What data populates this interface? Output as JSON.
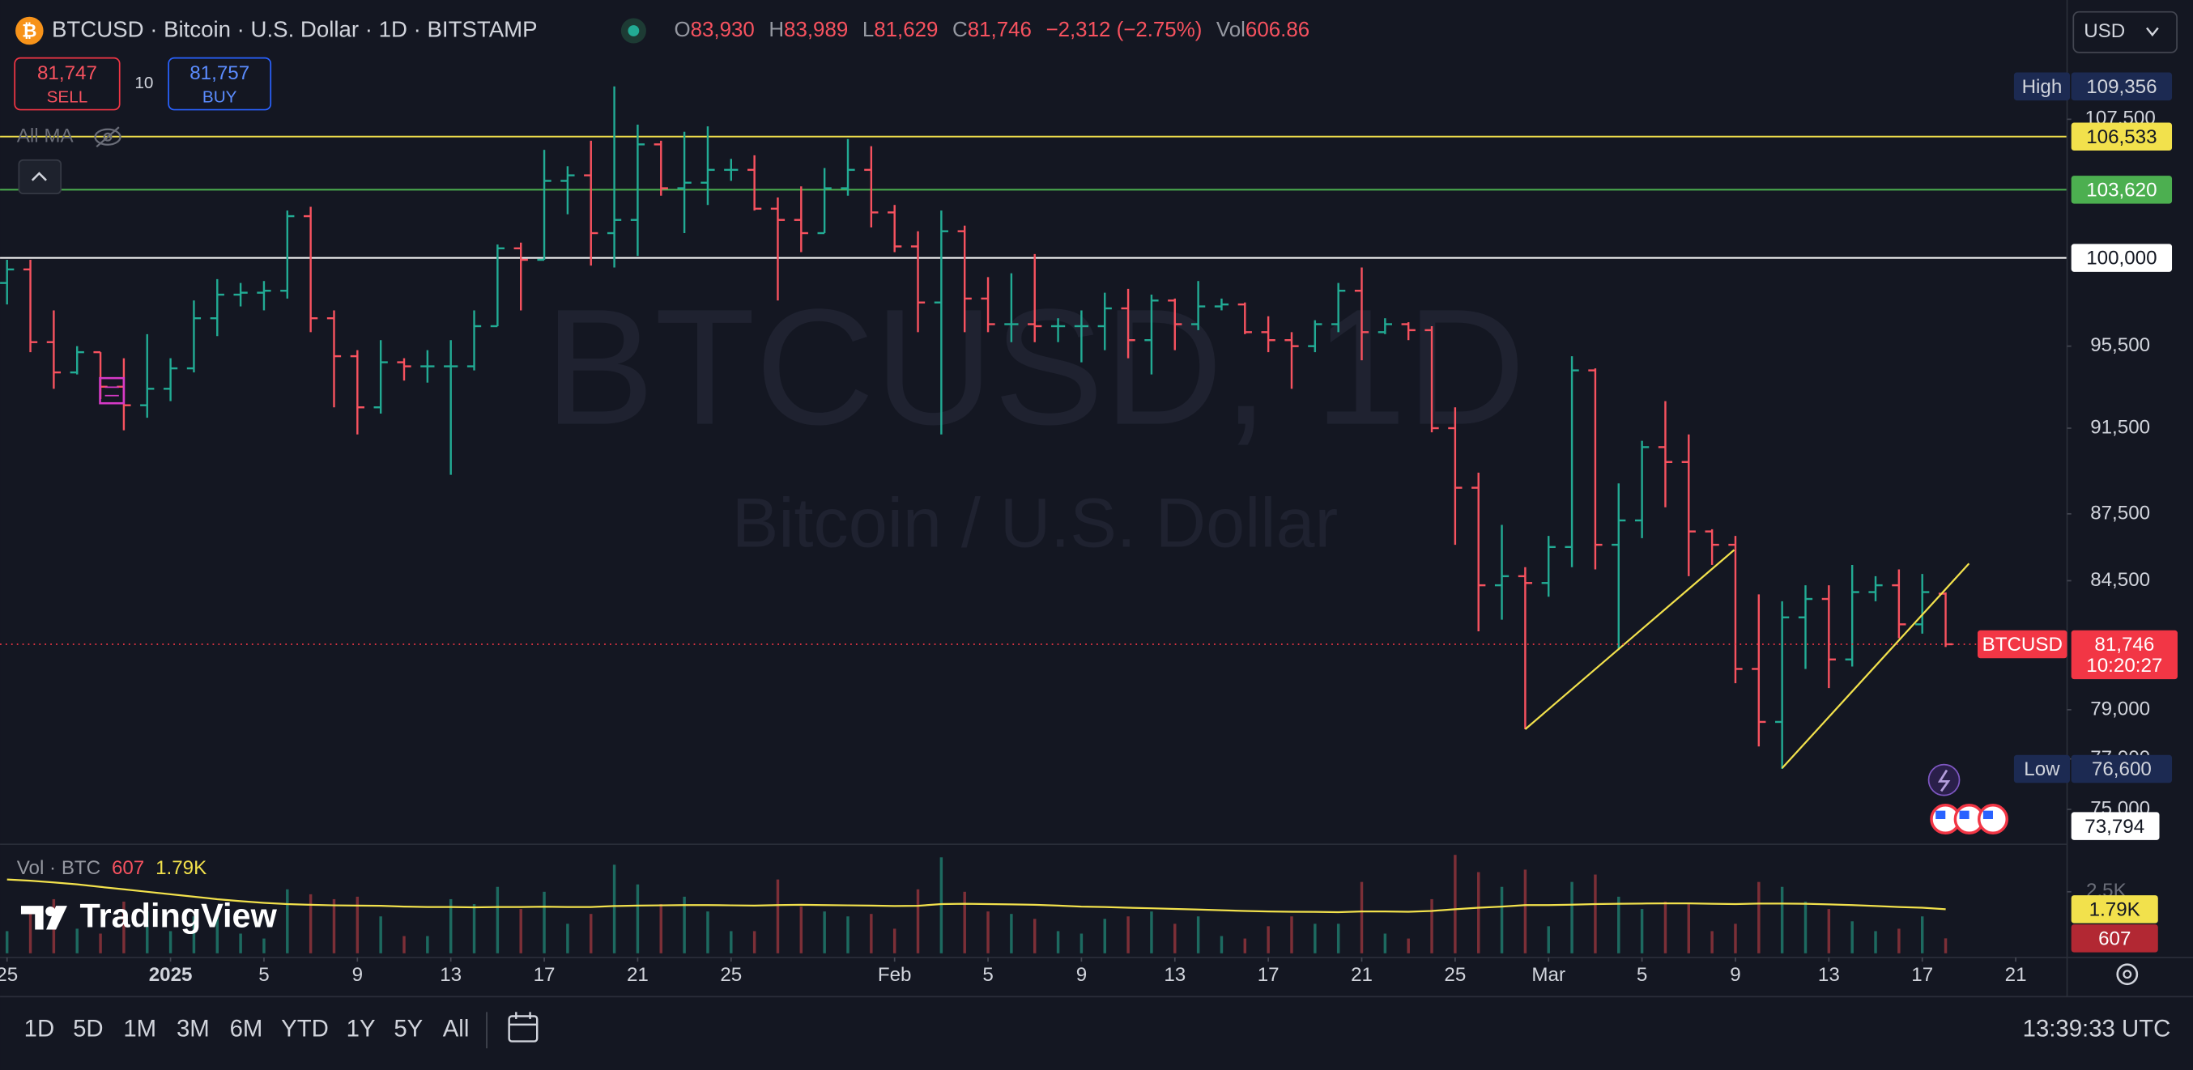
{
  "header": {
    "symbol_title": "BTCUSD · Bitcoin · U.S. Dollar · 1D · BITSTAMP",
    "ohlc": [
      {
        "label": "O",
        "value": "83,930"
      },
      {
        "label": "H",
        "value": "83,989"
      },
      {
        "label": "L",
        "value": "81,629"
      },
      {
        "label": "C",
        "value": "81,746"
      }
    ],
    "change": "−2,312 (−2.75%)",
    "vol_label": "Vol",
    "vol_value": "606.86"
  },
  "trade": {
    "sell_price": "81,747",
    "sell": "SELL",
    "quantity": "10",
    "buy_price": "81,757",
    "buy": "BUY"
  },
  "currency": "USD",
  "indicator_label": "All MA",
  "watermark": {
    "symbol": "BTCUSD, 1D",
    "name": "Bitcoin / U.S. Dollar"
  },
  "chart_data": [
    {
      "type": "ohlc",
      "log_scale": true,
      "grid": false,
      "up_color": "#22ab94",
      "down_color": "#f7525f",
      "xlim": [
        -0.3,
        88.2
      ],
      "xticks": [
        {
          "value": 0,
          "label": "25"
        },
        {
          "value": 7,
          "label": "2025"
        },
        {
          "value": 11,
          "label": "5"
        },
        {
          "value": 15,
          "label": "9"
        },
        {
          "value": 19,
          "label": "13"
        },
        {
          "value": 23,
          "label": "17"
        },
        {
          "value": 27,
          "label": "21"
        },
        {
          "value": 31,
          "label": "25"
        },
        {
          "value": 38,
          "label": "Feb"
        },
        {
          "value": 42,
          "label": "5"
        },
        {
          "value": 46,
          "label": "9"
        },
        {
          "value": 50,
          "label": "13"
        },
        {
          "value": 54,
          "label": "17"
        },
        {
          "value": 58,
          "label": "21"
        },
        {
          "value": 62,
          "label": "25"
        },
        {
          "value": 66,
          "label": "Mar"
        },
        {
          "value": 70,
          "label": "5"
        },
        {
          "value": 74,
          "label": "9"
        },
        {
          "value": 78,
          "label": "13"
        },
        {
          "value": 82,
          "label": "17"
        },
        {
          "value": 86,
          "label": "21"
        }
      ],
      "ylim": [
        73700,
        114400
      ],
      "yticks": [
        {
          "value": 107500,
          "label": "107,500"
        },
        {
          "value": 95500,
          "label": "95,500"
        },
        {
          "value": 91500,
          "label": "91,500"
        },
        {
          "value": 87500,
          "label": "87,500"
        },
        {
          "value": 84500,
          "label": "84,500"
        },
        {
          "value": 79000,
          "label": "79,000"
        },
        {
          "value": 77000,
          "label": "77,000"
        },
        {
          "value": 75000,
          "label": "75,000"
        }
      ],
      "open": [
        98700,
        99400,
        95700,
        94200,
        95200,
        93500,
        92600,
        93400,
        94400,
        96900,
        98100,
        98200,
        98300,
        102200,
        96900,
        95000,
        92500,
        94700,
        94500,
        94500,
        94500,
        96500,
        100500,
        99900,
        104100,
        104400,
        101300,
        102000,
        106100,
        103700,
        104000,
        104700,
        104700,
        102600,
        102000,
        101300,
        103700,
        104700,
        102400,
        100600,
        97700,
        101400,
        97900,
        96600,
        96600,
        96500,
        96500,
        96500,
        97400,
        95800,
        97800,
        96600,
        97500,
        97600,
        96200,
        95800,
        95500,
        96600,
        98300,
        96200,
        96600,
        96300,
        91500,
        88700,
        84300,
        84700,
        84400,
        86000,
        94300,
        86100,
        87200,
        90600,
        89900,
        86700,
        86100,
        80700,
        78500,
        82900,
        83700,
        81100,
        84000,
        84300,
        82600,
        83930
      ],
      "high": [
        99900,
        99900,
        97300,
        95500,
        95200,
        94900,
        96100,
        94900,
        97800,
        98900,
        98700,
        98800,
        102500,
        102700,
        97300,
        95300,
        95800,
        94900,
        95300,
        95800,
        97300,
        100700,
        100800,
        105800,
        104900,
        106300,
        109356,
        107200,
        106300,
        106800,
        107100,
        105300,
        105500,
        103200,
        103800,
        104800,
        106400,
        106000,
        102800,
        101400,
        102500,
        101700,
        99000,
        99200,
        100200,
        96900,
        97300,
        98200,
        98400,
        98100,
        97900,
        98800,
        97900,
        97700,
        97000,
        96200,
        96800,
        98700,
        99500,
        96900,
        96700,
        96500,
        92500,
        89400,
        87000,
        85100,
        86500,
        95000,
        94400,
        88900,
        90900,
        92800,
        91200,
        86800,
        86500,
        83900,
        83600,
        84300,
        84300,
        85200,
        84700,
        85000,
        84800,
        83989
      ],
      "low": [
        97600,
        95200,
        93400,
        94100,
        92900,
        91400,
        92000,
        92800,
        94200,
        96000,
        97500,
        97300,
        97900,
        96200,
        92500,
        91200,
        92200,
        93800,
        93700,
        89300,
        94300,
        96500,
        97300,
        99900,
        102300,
        99600,
        99500,
        100100,
        103300,
        101300,
        102800,
        104100,
        102500,
        97800,
        100300,
        101300,
        103300,
        101600,
        100300,
        96200,
        91200,
        96200,
        96200,
        95700,
        95700,
        95700,
        94700,
        95300,
        94900,
        94100,
        95300,
        96300,
        97300,
        96100,
        95200,
        93400,
        95200,
        96200,
        94800,
        96100,
        95800,
        91300,
        86100,
        82300,
        82800,
        78200,
        83800,
        85100,
        85000,
        81500,
        86400,
        87800,
        84700,
        85200,
        80100,
        77500,
        76600,
        80700,
        79900,
        80800,
        83600,
        82000,
        82200,
        81629
      ],
      "close": [
        99400,
        95700,
        94200,
        95200,
        93500,
        92600,
        93400,
        94400,
        96900,
        98100,
        98200,
        98300,
        102200,
        96900,
        95000,
        92500,
        94700,
        94500,
        94500,
        94500,
        96500,
        100500,
        99900,
        104100,
        104400,
        101300,
        102000,
        106100,
        103700,
        104000,
        104700,
        104700,
        102600,
        102000,
        101300,
        103700,
        104700,
        102400,
        100600,
        97700,
        101400,
        97900,
        96600,
        96600,
        96500,
        96500,
        96500,
        97400,
        95800,
        97800,
        96600,
        97500,
        97600,
        96200,
        95800,
        95500,
        96600,
        98300,
        96200,
        96600,
        96300,
        91500,
        88700,
        84300,
        84700,
        84400,
        86000,
        94300,
        86100,
        87200,
        90600,
        89900,
        86700,
        86100,
        80700,
        78500,
        82900,
        83700,
        81100,
        84000,
        84300,
        82600,
        84000,
        81746
      ],
      "levels": [
        {
          "value": 106533,
          "label": "106,533",
          "color": "#f2e14c",
          "label_text_color": "#131722"
        },
        {
          "value": 103620,
          "label": "103,620",
          "color": "#4caf50",
          "label_text_color": "#ffffff"
        },
        {
          "value": 100000,
          "label": "100,000",
          "color": "#ffffff",
          "label_text_color": "#131722"
        }
      ],
      "trend_lines": [
        {
          "color": "#f2e14c",
          "x": [
            65,
            73.95
          ],
          "y": [
            78200,
            85870
          ]
        },
        {
          "color": "#f2e14c",
          "x": [
            76,
            84
          ],
          "y": [
            76630,
            85260
          ]
        }
      ],
      "high_marker": {
        "label": "High",
        "value": 109356,
        "value_label": "109,356"
      },
      "low_marker": {
        "label": "Low",
        "value": 76600,
        "value_label": "76,600"
      },
      "last_price": {
        "name": "BTCUSD",
        "value": 81746,
        "value_label": "81,746",
        "countdown": "10:20:27",
        "color": "#f23645"
      },
      "bottom_marker": {
        "value": 73794,
        "label": "73,794"
      }
    },
    {
      "type": "volume",
      "title": "Vol · BTC",
      "up_color": "#1d6a60",
      "down_color": "#7c2f37",
      "ylim": [
        0,
        4375
      ],
      "yticks": [
        {
          "value": 2500,
          "label": "2.5K"
        }
      ],
      "values": [
        900,
        1800,
        2200,
        1000,
        800,
        2100,
        1700,
        900,
        1500,
        1700,
        800,
        600,
        2600,
        2400,
        2200,
        2300,
        1500,
        700,
        700,
        2200,
        2000,
        2700,
        1800,
        2500,
        1200,
        1600,
        3600,
        2800,
        2000,
        2300,
        1700,
        900,
        900,
        3000,
        1900,
        1700,
        1500,
        1600,
        1000,
        2600,
        3900,
        2500,
        1700,
        1600,
        1400,
        900,
        800,
        1400,
        1500,
        1700,
        1200,
        1500,
        700,
        600,
        1100,
        1500,
        1200,
        1200,
        2900,
        800,
        600,
        2200,
        4000,
        3300,
        2700,
        3400,
        1100,
        2900,
        3200,
        2300,
        1800,
        2100,
        2000,
        900,
        1200,
        2900,
        2700,
        2100,
        1800,
        1300,
        900,
        1000,
        1500,
        606.86
      ],
      "last_label": "607",
      "ma": {
        "color": "#f2e14c",
        "last_label": "1.79K",
        "values": [
          3000,
          2950,
          2880,
          2800,
          2700,
          2600,
          2500,
          2400,
          2300,
          2200,
          2120,
          2050,
          2000,
          1970,
          1950,
          1940,
          1930,
          1900,
          1880,
          1880,
          1870,
          1880,
          1880,
          1890,
          1880,
          1880,
          1920,
          1940,
          1950,
          1960,
          1960,
          1950,
          1940,
          1960,
          1970,
          1960,
          1950,
          1940,
          1920,
          1930,
          2000,
          2010,
          2000,
          1990,
          1970,
          1940,
          1900,
          1880,
          1850,
          1830,
          1800,
          1780,
          1750,
          1720,
          1700,
          1690,
          1680,
          1670,
          1700,
          1700,
          1690,
          1720,
          1790,
          1850,
          1900,
          1960,
          1960,
          1980,
          2000,
          2010,
          2020,
          2030,
          2030,
          2010,
          2000,
          2020,
          2020,
          2010,
          1990,
          1960,
          1920,
          1880,
          1850,
          1790
        ]
      }
    }
  ],
  "logo": "TradingView",
  "toolbar": {
    "ranges": [
      "1D",
      "5D",
      "1M",
      "3M",
      "6M",
      "YTD",
      "1Y",
      "5Y",
      "All"
    ],
    "clock": "13:39:33 UTC"
  }
}
